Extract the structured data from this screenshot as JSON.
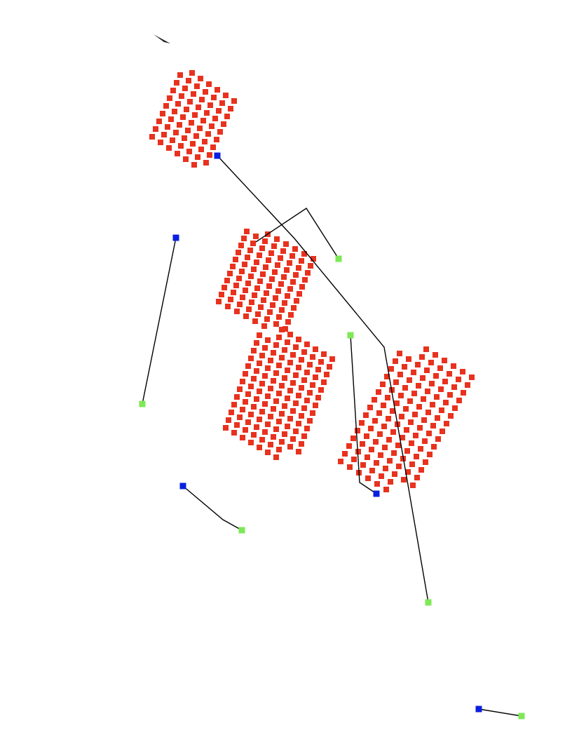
{
  "colors": {
    "background": "#ffffff",
    "obstacle": "#e8321e",
    "start": "#0a1fe0",
    "goal": "#7ee857",
    "path": "#000000"
  },
  "legend": {
    "obstacle_marker": "red-square",
    "start_marker": "blue-square",
    "goal_marker": "green-square"
  },
  "obstacle_cluster_count": 4,
  "agent_path_count": 7
}
